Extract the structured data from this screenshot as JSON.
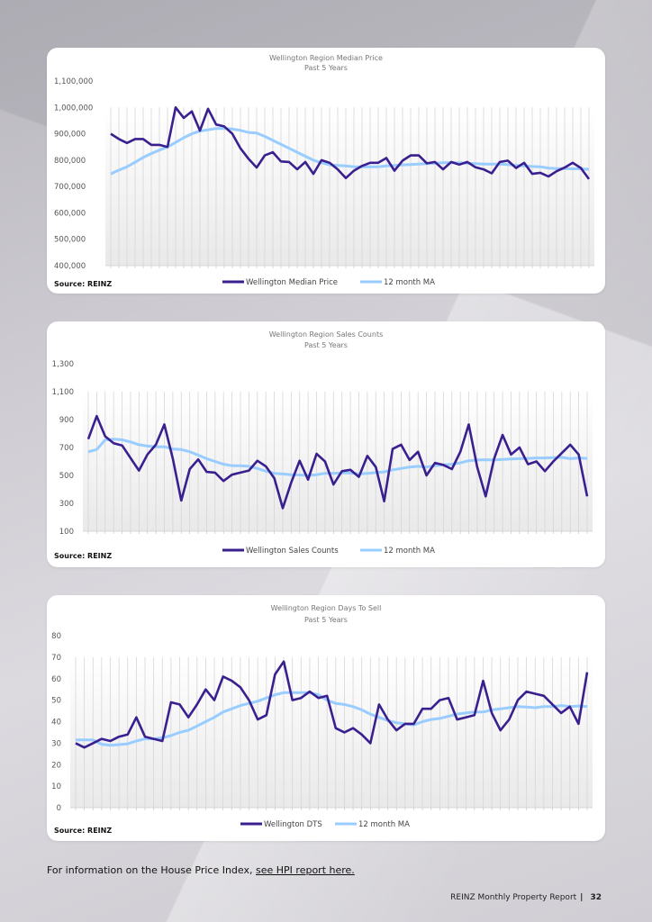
{
  "colors": {
    "main_series": "#3a1f8f",
    "ma_series": "#99ccff",
    "grid": "#d6d6d6"
  },
  "chart_data": [
    {
      "type": "line",
      "title": "Wellington Region Median Price",
      "subtitle": "Past 5 Years",
      "source": "Source: REINZ",
      "ylim": [
        400000,
        1100000
      ],
      "yticks": [
        400000,
        500000,
        600000,
        700000,
        800000,
        900000,
        1000000,
        1100000
      ],
      "ytick_labels": [
        "400,000",
        "500,000",
        "600,000",
        "700,000",
        "800,000",
        "900,000",
        "1,000,000",
        "1,100,000"
      ],
      "gradient_top": 1000000,
      "legend_position": "bottom-center",
      "series": [
        {
          "name": "Wellington Median Price",
          "values": [
            900000,
            880000,
            865000,
            880000,
            880000,
            858000,
            858000,
            850000,
            1000000,
            960000,
            985000,
            912000,
            995000,
            935000,
            928000,
            900000,
            845000,
            805000,
            772000,
            818000,
            830000,
            795000,
            793000,
            765000,
            793000,
            748000,
            800000,
            790000,
            765000,
            732000,
            760000,
            778000,
            790000,
            790000,
            808000,
            760000,
            798000,
            818000,
            818000,
            788000,
            793000,
            765000,
            793000,
            783000,
            793000,
            773000,
            765000,
            750000,
            793000,
            798000,
            770000,
            790000,
            748000,
            752000,
            738000,
            758000,
            772000,
            790000,
            770000,
            728000
          ]
        },
        {
          "name": "12 month MA",
          "values": [
            748000,
            762000,
            775000,
            792000,
            810000,
            825000,
            838000,
            850000,
            867000,
            885000,
            900000,
            910000,
            915000,
            920000,
            920000,
            918000,
            913000,
            905000,
            903000,
            890000,
            875000,
            860000,
            845000,
            830000,
            815000,
            800000,
            790000,
            782000,
            780000,
            778000,
            775000,
            775000,
            775000,
            775000,
            778000,
            780000,
            782000,
            783000,
            785000,
            787000,
            788000,
            790000,
            790000,
            790000,
            788000,
            787000,
            785000,
            785000,
            785000,
            783000,
            780000,
            778000,
            776000,
            775000,
            770000,
            768000,
            768000,
            767000,
            767000,
            765000
          ]
        }
      ]
    },
    {
      "type": "line",
      "title": "Wellington Region Sales Counts",
      "subtitle": "Past 5 Years",
      "source": "Source: REINZ",
      "ylim": [
        100,
        1300
      ],
      "yticks": [
        100,
        300,
        500,
        700,
        900,
        1100,
        1300
      ],
      "ytick_labels": [
        "100",
        "300",
        "500",
        "700",
        "900",
        "1,100",
        "1,300"
      ],
      "gradient_top": 1100,
      "legend_position": "bottom-center",
      "series": [
        {
          "name": "Wellington Sales Counts",
          "values": [
            760,
            925,
            780,
            730,
            715,
            625,
            535,
            650,
            720,
            865,
            620,
            320,
            545,
            615,
            525,
            520,
            460,
            505,
            520,
            535,
            605,
            565,
            480,
            265,
            450,
            605,
            470,
            655,
            600,
            435,
            530,
            540,
            490,
            640,
            560,
            315,
            690,
            720,
            610,
            670,
            500,
            590,
            575,
            545,
            670,
            865,
            560,
            350,
            620,
            790,
            650,
            700,
            580,
            600,
            530,
            600,
            660,
            720,
            650,
            350
          ]
        },
        {
          "name": "12 month MA",
          "values": [
            670,
            685,
            755,
            760,
            755,
            740,
            720,
            710,
            705,
            705,
            690,
            685,
            670,
            645,
            620,
            600,
            580,
            570,
            570,
            565,
            550,
            530,
            515,
            510,
            505,
            503,
            500,
            505,
            515,
            515,
            518,
            518,
            510,
            515,
            520,
            525,
            540,
            550,
            560,
            565,
            560,
            570,
            575,
            580,
            590,
            605,
            610,
            612,
            610,
            615,
            618,
            620,
            622,
            625,
            625,
            628,
            630,
            620,
            625,
            622
          ]
        }
      ]
    },
    {
      "type": "line",
      "title": "Wellington Region Days To Sell",
      "subtitle": "Past 5 Years",
      "source": "Source: REINZ",
      "ylim": [
        0,
        80
      ],
      "yticks": [
        0,
        10,
        20,
        30,
        40,
        50,
        60,
        70,
        80
      ],
      "ytick_labels": [
        "0",
        "10",
        "20",
        "30",
        "40",
        "50",
        "60",
        "70",
        "80"
      ],
      "gradient_top": 70,
      "legend_position": "bottom-center",
      "series": [
        {
          "name": "Wellington DTS",
          "values": [
            30,
            28,
            30,
            32,
            31,
            33,
            34,
            42,
            33,
            32,
            31,
            49,
            48,
            42,
            48,
            55,
            50,
            61,
            59,
            56,
            50,
            41,
            43,
            62,
            68,
            50,
            51,
            54,
            51,
            52,
            37,
            35,
            37,
            34,
            30,
            48,
            41,
            36,
            39,
            39,
            46,
            46,
            50,
            51,
            41,
            42,
            43,
            59,
            44,
            36,
            41,
            50,
            54,
            53,
            52,
            48,
            44,
            47,
            39,
            63
          ]
        },
        {
          "name": "12 month MA",
          "values": [
            31.5,
            31.5,
            31.5,
            29.5,
            29,
            29.3,
            29.7,
            31,
            32,
            32,
            32.5,
            33.5,
            35,
            36,
            38,
            40,
            42,
            44.5,
            46,
            47.5,
            48.5,
            49.5,
            51,
            52.5,
            53.5,
            53.5,
            53.5,
            53.5,
            52.5,
            50,
            48.5,
            48,
            47,
            45.5,
            43.5,
            42,
            40.5,
            39.5,
            39,
            38.5,
            40,
            41,
            41.5,
            42.5,
            43.5,
            44,
            44.5,
            44.5,
            45.5,
            46,
            46.5,
            47,
            46.8,
            46.5,
            47,
            47,
            47.5,
            47,
            47.3,
            47
          ]
        }
      ]
    }
  ],
  "footer": {
    "note_prefix": "For information on the House Price Index, ",
    "note_link": "see HPI report here.",
    "report_name": "REINZ Monthly Property Report",
    "separator": "|",
    "page_number": "32"
  }
}
